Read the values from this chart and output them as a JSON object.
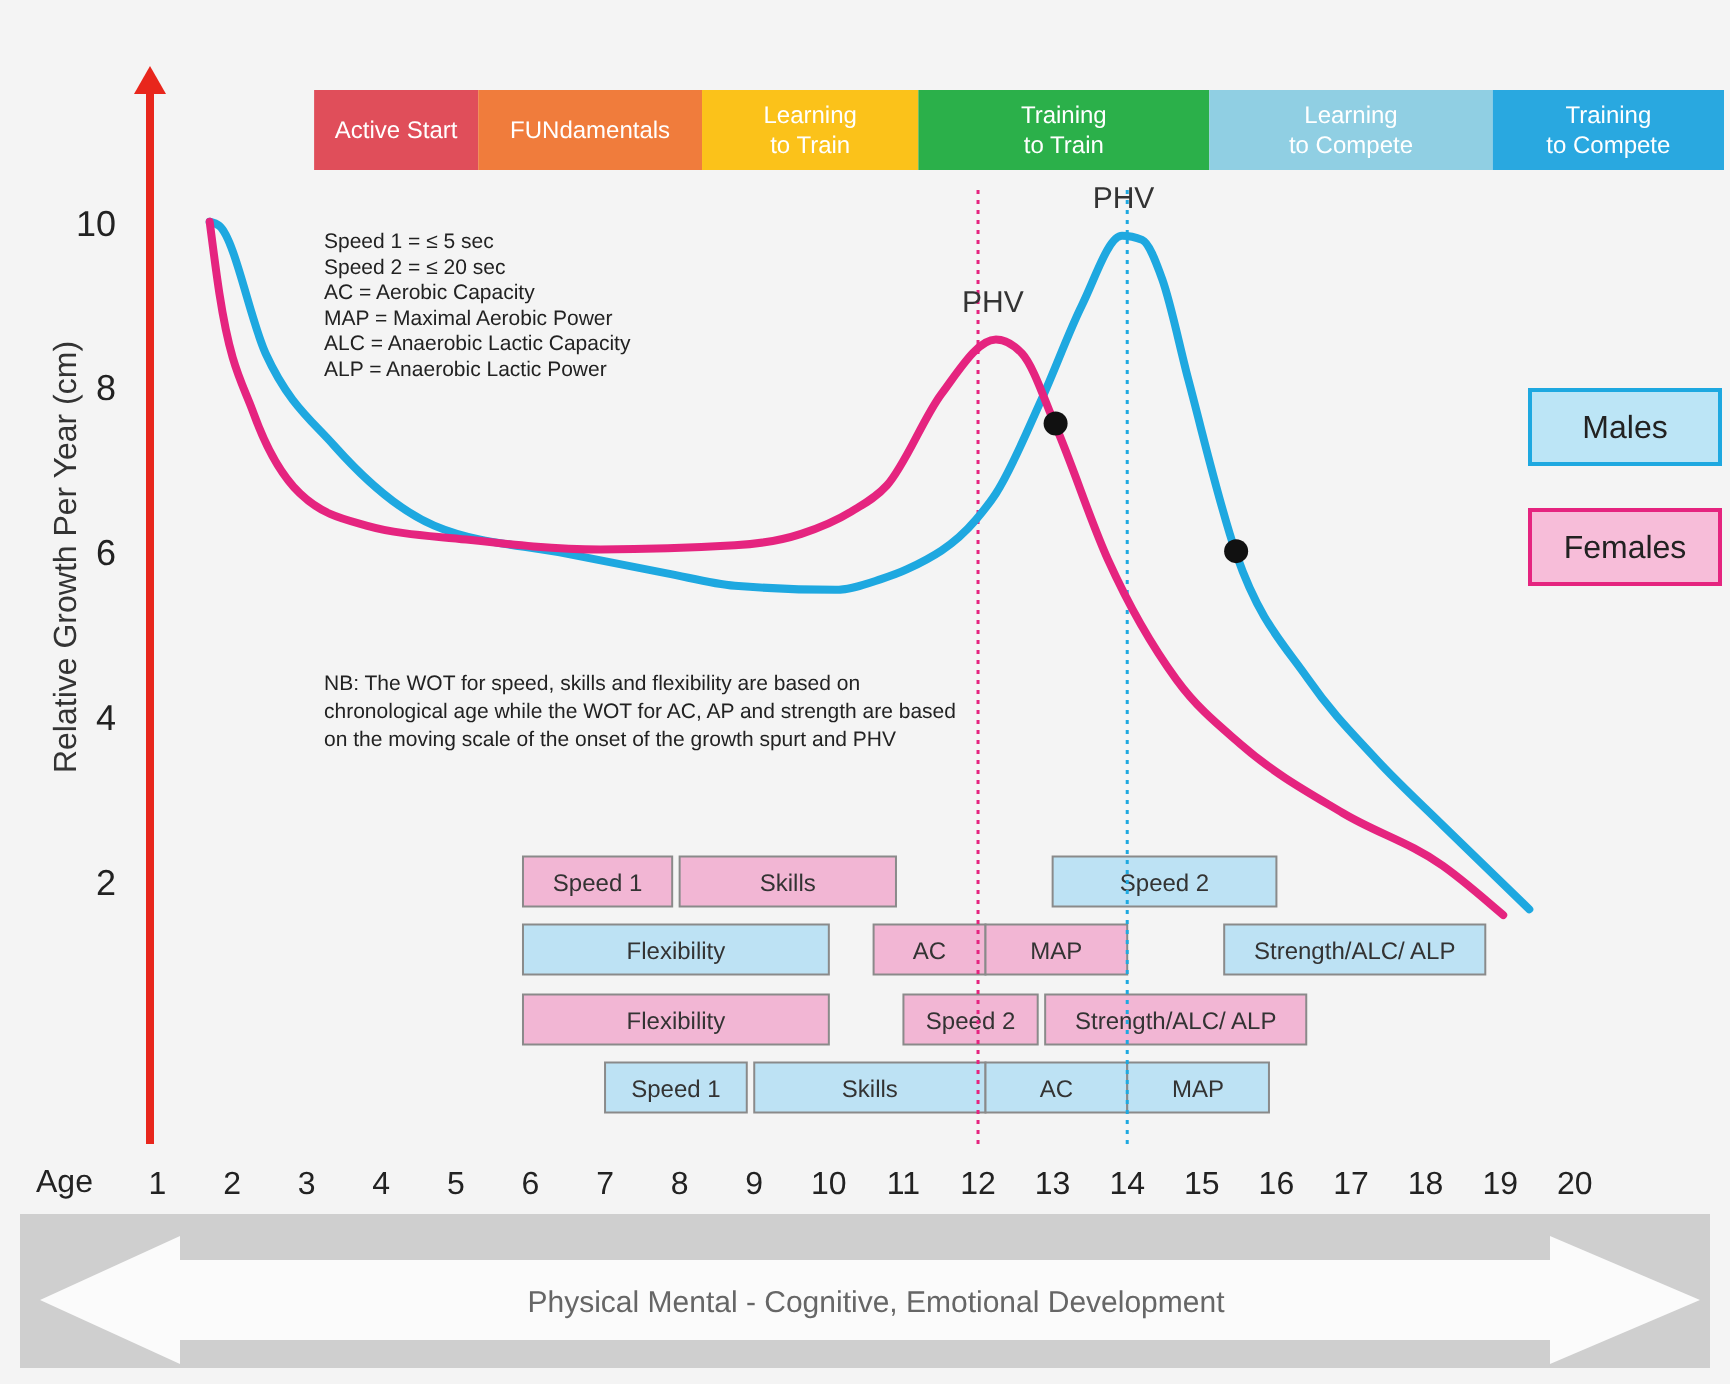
{
  "chart_data": {
    "type": "line",
    "ylabel": "Relative Growth Per Year (cm)",
    "xlabel": "Age",
    "xlim": [
      0.9,
      22
    ],
    "xticks": [
      1,
      2,
      3,
      4,
      5,
      6,
      7,
      8,
      9,
      10,
      11,
      12,
      13,
      14,
      15,
      16,
      17,
      18,
      19,
      20
    ],
    "ylim": [
      -1.2,
      11.6
    ],
    "yticks": [
      2,
      4,
      6,
      8,
      10
    ],
    "grid": false,
    "legend": "right",
    "marker": "none",
    "line_style": "solid",
    "series": [
      {
        "name": "Males",
        "color": "#1ea8e0",
        "x": [
          1.7,
          1.83,
          2.45,
          3.37,
          4.71,
          6.48,
          7.83,
          8.74,
          10.09,
          10.7,
          11.05,
          11.97,
          12.24,
          12.85,
          13.39,
          13.93,
          14.2,
          14.47,
          14.82,
          15.46,
          16.43,
          17.34,
          18.23,
          19.39
        ],
        "values": [
          10.0,
          9.95,
          8.4,
          7.28,
          6.31,
          5.97,
          5.73,
          5.58,
          5.53,
          5.66,
          5.78,
          6.38,
          6.7,
          7.84,
          8.98,
          9.83,
          9.78,
          9.3,
          8.08,
          5.97,
          4.44,
          3.47,
          2.67,
          1.65
        ]
      },
      {
        "name": "Females",
        "color": "#e5247f",
        "x": [
          1.7,
          1.83,
          2.29,
          2.91,
          3.8,
          5.14,
          6.94,
          8.74,
          9.63,
          10.3,
          10.78,
          11.51,
          12.24,
          12.59,
          13.04,
          13.74,
          14.66,
          15.54,
          16.89,
          18.23,
          19.04
        ],
        "values": [
          10.0,
          9.13,
          7.67,
          6.7,
          6.31,
          6.14,
          6.02,
          6.07,
          6.21,
          6.48,
          6.8,
          7.91,
          8.57,
          8.4,
          7.52,
          5.9,
          4.44,
          3.64,
          2.82,
          2.18,
          1.58
        ]
      },
      {
        "type": "scatter",
        "color": "#111111",
        "marker": "circle",
        "x": [
          13.04,
          15.46
        ],
        "values": [
          7.55,
          6.0
        ]
      }
    ],
    "ref_lines": [
      {
        "axis": "x",
        "value": 12,
        "color": "#e5247f",
        "line_style": "dotted"
      },
      {
        "axis": "x",
        "value": 14,
        "color": "#1ea8e0",
        "line_style": "dotted"
      }
    ],
    "bands": [
      {
        "axis": "x",
        "from": 3.1,
        "to": 5.3,
        "label": "Active Start",
        "color": "#e04e5a"
      },
      {
        "axis": "x",
        "from": 5.3,
        "to": 8.3,
        "label": "FUNdamentals",
        "color": "#f07c3c"
      },
      {
        "axis": "x",
        "from": 8.3,
        "to": 11.2,
        "label": "Learning\nto Train",
        "color": "#fbc21a"
      },
      {
        "axis": "x",
        "from": 11.2,
        "to": 15.1,
        "label": "Training\nto Train",
        "color": "#2bb04a"
      },
      {
        "axis": "x",
        "from": 15.1,
        "to": 18.9,
        "label": "Learning\nto Compete",
        "color": "#90cfe3"
      },
      {
        "axis": "x",
        "from": 18.9,
        "to": 22,
        "label": "Training\nto Compete",
        "color": "#29a8e0"
      },
      {
        "axis": "x",
        "from": 5.9,
        "to": 7.9,
        "label": "Speed 1",
        "color": "#f2b6d4"
      },
      {
        "axis": "x",
        "from": 8.0,
        "to": 10.9,
        "label": "Skills",
        "color": "#f2b6d4"
      },
      {
        "axis": "x",
        "from": 13.0,
        "to": 16.0,
        "label": "Speed 2",
        "color": "#bde2f4"
      },
      {
        "axis": "x",
        "from": 5.9,
        "to": 10.0,
        "label": "Flexibility",
        "color": "#bde2f4"
      },
      {
        "axis": "x",
        "from": 10.6,
        "to": 12.1,
        "label": "AC",
        "color": "#f2b6d4"
      },
      {
        "axis": "x",
        "from": 12.1,
        "to": 14.0,
        "label": "MAP",
        "color": "#f2b6d4"
      },
      {
        "axis": "x",
        "from": 15.3,
        "to": 18.8,
        "label": "Strength/ALC/ ALP",
        "color": "#bde2f4"
      },
      {
        "axis": "x",
        "from": 5.9,
        "to": 10.0,
        "label": "Flexibility",
        "color": "#f2b6d4"
      },
      {
        "axis": "x",
        "from": 11.0,
        "to": 12.8,
        "label": "Speed 2",
        "color": "#f2b6d4"
      },
      {
        "axis": "x",
        "from": 12.9,
        "to": 16.4,
        "label": "Strength/ALC/ ALP",
        "color": "#f2b6d4"
      },
      {
        "axis": "x",
        "from": 7.0,
        "to": 8.9,
        "label": "Speed 1",
        "color": "#bde2f4"
      },
      {
        "axis": "x",
        "from": 9.0,
        "to": 12.1,
        "label": "Skills",
        "color": "#bde2f4"
      },
      {
        "axis": "x",
        "from": 12.1,
        "to": 14.0,
        "label": "AC",
        "color": "#bde2f4"
      },
      {
        "axis": "x",
        "from": 14.0,
        "to": 15.9,
        "label": "MAP",
        "color": "#bde2f4"
      }
    ],
    "annotations": [
      "Speed 1 = ≤ 5 sec\nSpeed 2 = ≤ 20 sec\nAC = Aerobic Capacity\nMAP = Maximal Aerobic Power\nALC = Anaerobic Lactic Capacity\nALP = Anaerobic Lactic Power",
      "NB: The WOT for speed, skills and flexibility are based on\nchronological age while the WOT for AC, AP and strength are based\non the moving scale of the onset of the growth spurt and PHV",
      "Physical  Mental - Cognitive, Emotional Development",
      {
        "text": "PHV",
        "x": 12.2,
        "y": 8.57
      },
      {
        "text": "PHV",
        "x": 13.95,
        "y": 9.83
      }
    ]
  }
}
